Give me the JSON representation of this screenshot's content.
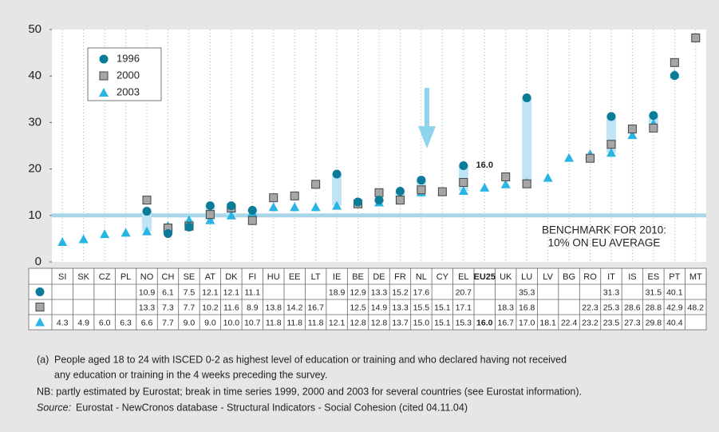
{
  "chart_data": {
    "type": "dot",
    "categories": [
      "SI",
      "SK",
      "CZ",
      "PL",
      "NO",
      "CH",
      "SE",
      "AT",
      "DK",
      "FI",
      "HU",
      "EE",
      "LT",
      "IE",
      "BE",
      "DE",
      "FR",
      "NL",
      "CY",
      "EL",
      "EU25",
      "UK",
      "LU",
      "LV",
      "BG",
      "RO",
      "IT",
      "IS",
      "ES",
      "PT",
      "MT"
    ],
    "series": [
      {
        "name": "1996",
        "color": "#0b7c98",
        "marker": "circle",
        "values": [
          null,
          null,
          null,
          null,
          10.9,
          6.1,
          7.5,
          12.1,
          12.1,
          11.1,
          null,
          null,
          null,
          18.9,
          12.9,
          13.3,
          15.2,
          17.6,
          null,
          20.7,
          null,
          null,
          35.3,
          null,
          null,
          null,
          31.3,
          null,
          31.5,
          40.1,
          null
        ],
        "value_labels": [
          null,
          null,
          null,
          null,
          "10.9",
          "6.1",
          "7.5",
          "12.1",
          "12.1",
          "11.1",
          null,
          null,
          null,
          "18.9",
          "12.9",
          "13.3",
          "15.2",
          "17.6",
          null,
          "20.7",
          null,
          null,
          "35.3",
          null,
          null,
          null,
          "31.3",
          null,
          "31.5",
          "40.1",
          null
        ]
      },
      {
        "name": "2000",
        "color": "#a6a6a6",
        "marker": "square",
        "values": [
          null,
          null,
          null,
          null,
          13.3,
          7.3,
          7.7,
          10.2,
          11.6,
          8.9,
          13.8,
          14.2,
          16.7,
          null,
          12.5,
          14.9,
          13.3,
          15.5,
          15.1,
          17.1,
          null,
          18.3,
          16.8,
          null,
          null,
          22.3,
          25.3,
          28.6,
          28.8,
          42.9,
          48.2
        ],
        "value_labels": [
          null,
          null,
          null,
          null,
          "13.3",
          "7.3",
          "7.7",
          "10.2",
          "11.6",
          "8.9",
          "13.8",
          "14.2",
          "16.7",
          null,
          "12.5",
          "14.9",
          "13.3",
          "15.5",
          "15.1",
          "17.1",
          null,
          "18.3",
          "16.8",
          null,
          null,
          "22.3",
          "25.3",
          "28.6",
          "28.8",
          "42.9",
          "48.2"
        ]
      },
      {
        "name": "2003",
        "color": "#29b5e3",
        "marker": "triangle",
        "values": [
          4.3,
          4.9,
          6.0,
          6.3,
          6.6,
          7.7,
          9.0,
          9.0,
          10.0,
          10.7,
          11.8,
          11.8,
          11.8,
          12.1,
          12.8,
          12.8,
          13.7,
          15.0,
          15.1,
          15.3,
          16.0,
          16.7,
          17.0,
          18.1,
          22.4,
          23.2,
          23.5,
          27.3,
          29.8,
          40.4,
          null
        ],
        "value_labels": [
          "4.3",
          "4.9",
          "6.0",
          "6.3",
          "6.6",
          "7.7",
          "9.0",
          "9.0",
          "10.0",
          "10.7",
          "11.8",
          "11.8",
          "11.8",
          "12.1",
          "12.8",
          "12.8",
          "13.7",
          "15.0",
          "15.1",
          "15.3",
          "16.0",
          "16.7",
          "17.0",
          "18.1",
          "22.4",
          "23.2",
          "23.5",
          "27.3",
          "29.8",
          "40.4",
          null
        ]
      }
    ],
    "ylim": [
      0,
      50
    ],
    "yticks": [
      0,
      10,
      20,
      30,
      40,
      50
    ],
    "benchmark": 10,
    "benchmark_label": [
      "BENCHMARK FOR 2010:",
      "10% ON EU AVERAGE"
    ],
    "highlight_category": "EU25",
    "highlight_label": "16.0",
    "footnotes": {
      "marker": "(a)",
      "note_a": [
        "People aged 18 to 24 with ISCED 0-2 as highest level of education or training and who declared having not received",
        "any education or training in the 4 weeks preceding the survey."
      ],
      "nb": "NB:  partly estimated by Eurostat; break in time series 1999, 2000 and 2003 for several countries (see Eurostat information).",
      "source_label": "Source:",
      "source": "Eurostat - NewCronos database - Structural Indicators - Social Cohesion (cited 04.11.04)"
    }
  }
}
